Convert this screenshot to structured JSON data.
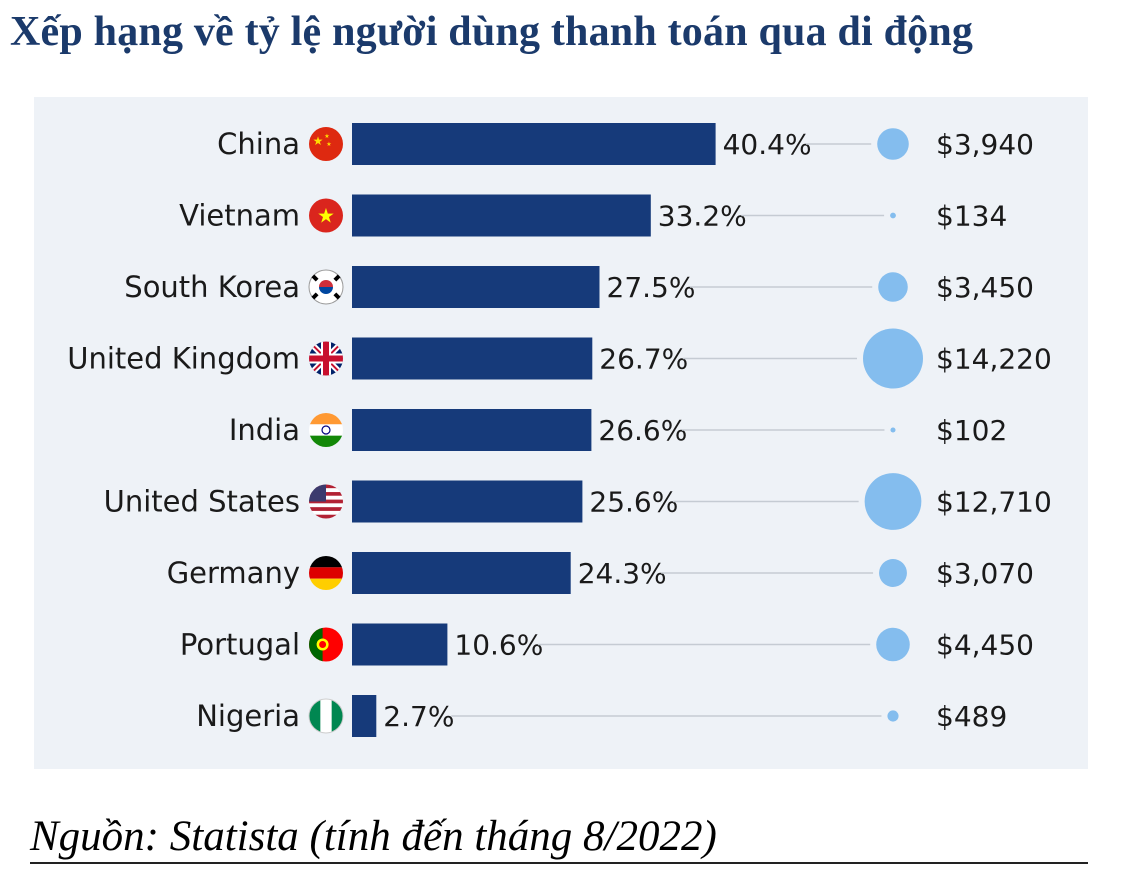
{
  "title": "Xếp hạng về tỷ lệ người dùng thanh toán qua di động",
  "source": "Nguồn: Statista (tính đến tháng 8/2022)",
  "colors": {
    "bar": "#163a7a",
    "bubble": "#84bdee",
    "panel": "#eef2f7",
    "line": "#c5cbd3",
    "text": "#1a1a1a"
  },
  "chart_data": {
    "type": "bar",
    "orientation": "horizontal",
    "categories": [
      "China",
      "Vietnam",
      "South Korea",
      "United Kingdom",
      "India",
      "United States",
      "Germany",
      "Portugal",
      "Nigeria"
    ],
    "values": [
      40.4,
      33.2,
      27.5,
      26.7,
      26.6,
      25.6,
      24.3,
      10.6,
      2.7
    ],
    "value_labels": [
      "40.4%",
      "33.2%",
      "27.5%",
      "26.7%",
      "26.6%",
      "25.6%",
      "24.3%",
      "10.6%",
      "2.7%"
    ],
    "bubble_values": [
      3940,
      134,
      3450,
      14220,
      102,
      12710,
      3070,
      4450,
      489
    ],
    "bubble_labels": [
      "$3,940",
      "$134",
      "$3,450",
      "$14,220",
      "$102",
      "$12,710",
      "$3,070",
      "$4,450",
      "$489"
    ],
    "flags": [
      "china-flag-icon",
      "vietnam-flag-icon",
      "south-korea-flag-icon",
      "united-kingdom-flag-icon",
      "india-flag-icon",
      "united-states-flag-icon",
      "germany-flag-icon",
      "portugal-flag-icon",
      "nigeria-flag-icon"
    ],
    "grid": false,
    "legend": "none"
  }
}
